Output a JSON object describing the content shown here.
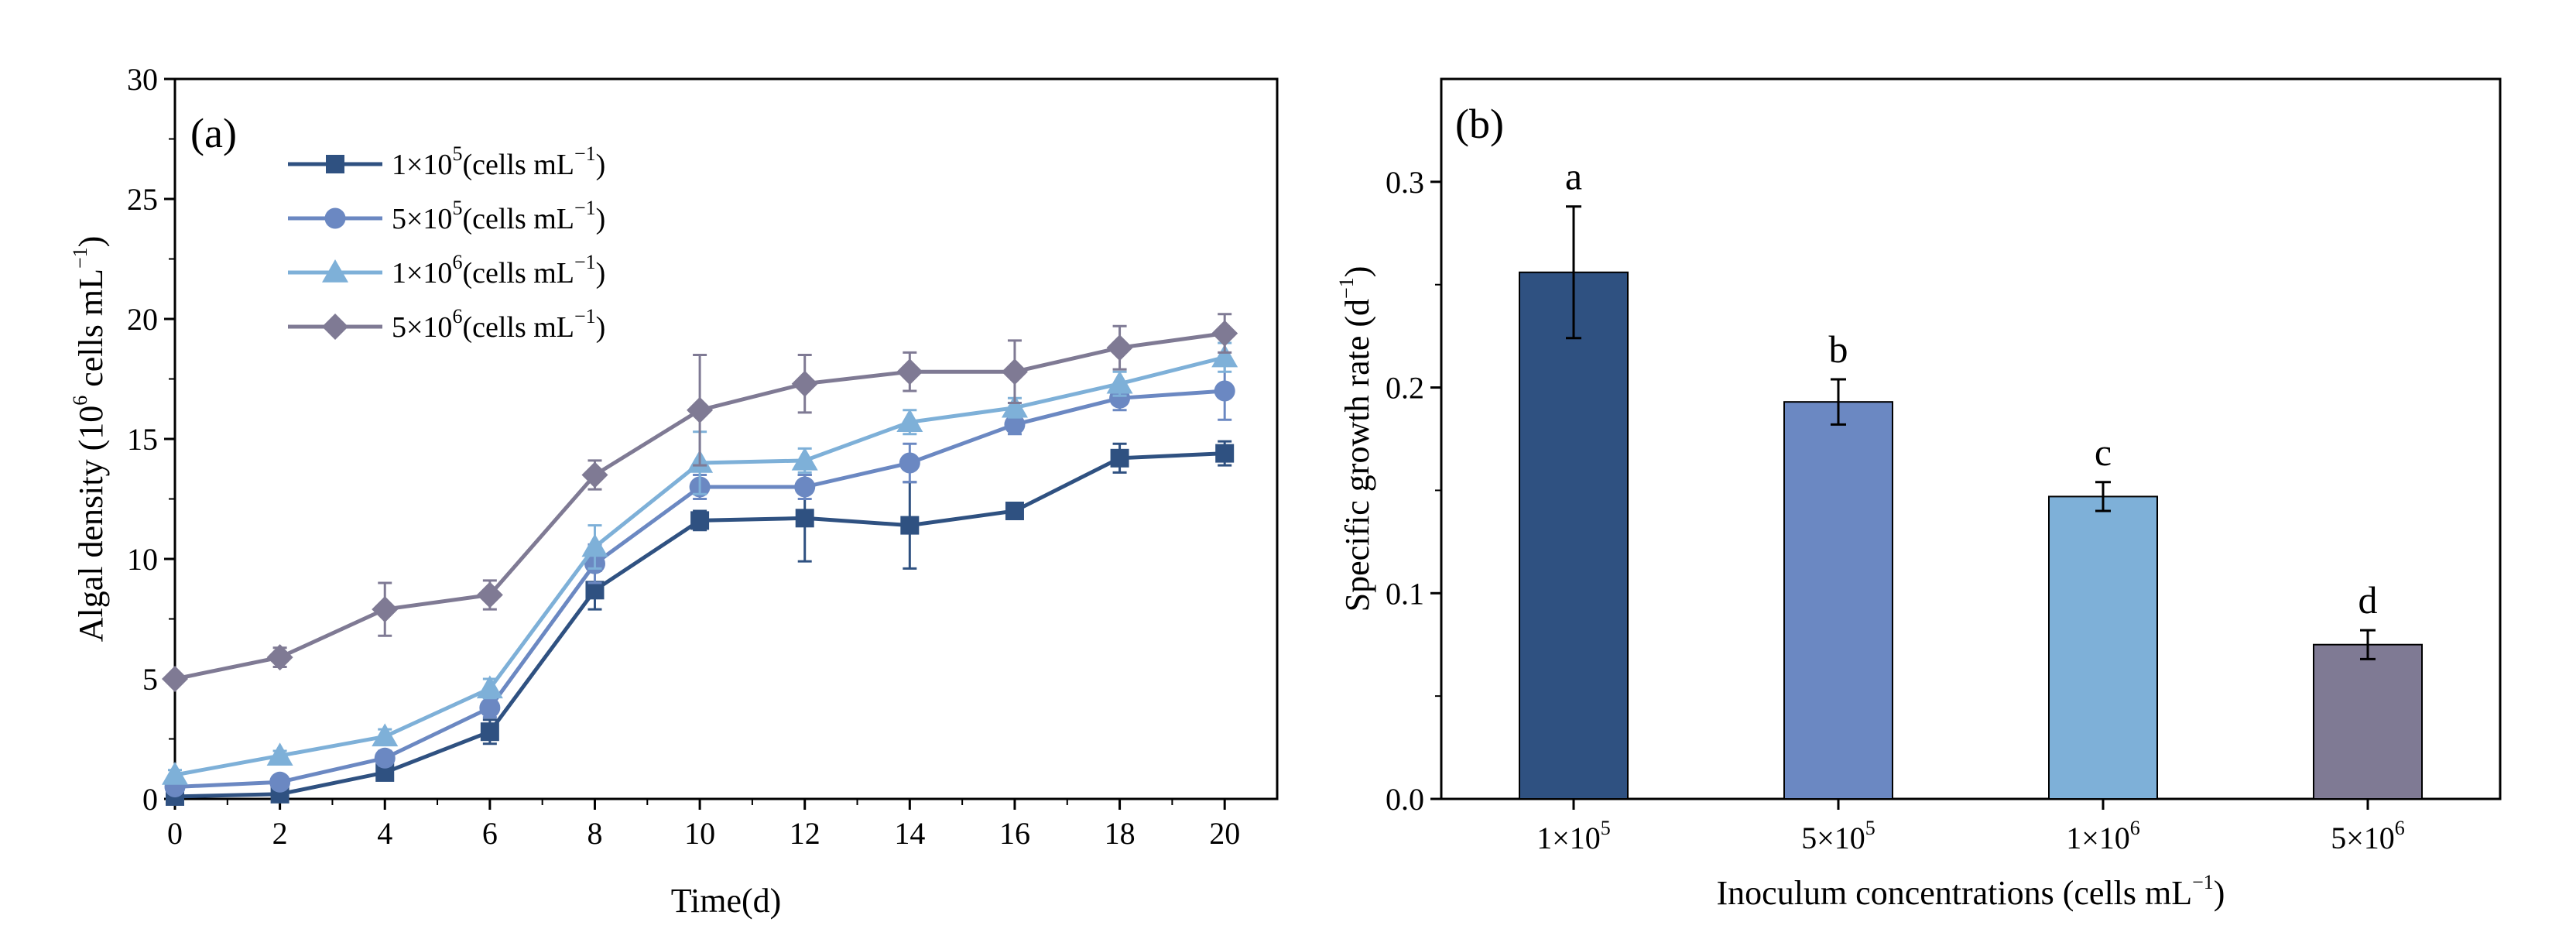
{
  "chart_data": [
    {
      "panel_label": "(a)",
      "type": "line",
      "xlabel": "Time(d)",
      "ylabel": "Algal density (10^6 cells mL^-1)",
      "ylabel_parts": {
        "pre": "Algal density (10",
        "exp1": "6",
        "mid": " cells mL",
        "exp2": "−1",
        "post": ")"
      },
      "x": [
        0,
        2,
        4,
        6,
        8,
        10,
        12,
        14,
        16,
        18,
        20
      ],
      "xlim": [
        0,
        21
      ],
      "ylim": [
        0,
        30
      ],
      "x_ticks": [
        "0",
        "2",
        "4",
        "6",
        "8",
        "10",
        "12",
        "14",
        "16",
        "18",
        "20"
      ],
      "y_ticks": [
        "0",
        "5",
        "10",
        "15",
        "20",
        "25",
        "30"
      ],
      "legend_position": "top-left",
      "series": [
        {
          "name": "1×10^5(cells mL^-1)",
          "label_parts": {
            "base": "1×10",
            "exp": "5",
            "unit": "(cells mL",
            "unit_exp": "−1",
            "close": ")"
          },
          "color": "#2f5181",
          "marker": "square",
          "values": [
            0.1,
            0.2,
            1.1,
            2.8,
            8.7,
            11.6,
            11.7,
            11.4,
            12.0,
            14.2,
            14.4
          ],
          "errors": [
            0.1,
            0.1,
            0.3,
            0.5,
            0.8,
            0.4,
            1.8,
            1.8,
            0.3,
            0.6,
            0.5
          ]
        },
        {
          "name": "5×10^5(cells mL^-1)",
          "label_parts": {
            "base": "5×10",
            "exp": "5",
            "unit": "(cells mL",
            "unit_exp": "−1",
            "close": ")"
          },
          "color": "#6b88c2",
          "marker": "circle",
          "values": [
            0.5,
            0.7,
            1.7,
            3.8,
            9.8,
            13.0,
            13.0,
            14.0,
            15.6,
            16.7,
            17.0
          ],
          "errors": [
            0.2,
            0.2,
            0.3,
            0.4,
            0.8,
            0.5,
            0.5,
            0.8,
            0.4,
            0.5,
            1.2
          ]
        },
        {
          "name": "1×10^6(cells mL^-1)",
          "label_parts": {
            "base": "1×10",
            "exp": "6",
            "unit": "(cells mL",
            "unit_exp": "−1",
            "close": ")"
          },
          "color": "#7eb0d8",
          "marker": "triangle",
          "values": [
            1.0,
            1.8,
            2.6,
            4.6,
            10.5,
            14.0,
            14.1,
            15.7,
            16.3,
            17.3,
            18.4
          ],
          "errors": [
            0.2,
            0.2,
            0.3,
            0.4,
            0.9,
            1.3,
            0.5,
            0.5,
            0.4,
            0.5,
            0.6
          ]
        },
        {
          "name": "5×10^6(cells mL^-1)",
          "label_parts": {
            "base": "5×10",
            "exp": "6",
            "unit": "(cells mL",
            "unit_exp": "−1",
            "close": ")"
          },
          "color": "#7f7a94",
          "marker": "diamond",
          "values": [
            5.0,
            5.9,
            7.9,
            8.5,
            13.5,
            16.2,
            17.3,
            17.8,
            17.8,
            18.8,
            19.4
          ],
          "errors": [
            0.1,
            0.4,
            1.1,
            0.6,
            0.6,
            2.3,
            1.2,
            0.8,
            1.3,
            0.9,
            0.8
          ]
        }
      ]
    },
    {
      "panel_label": "(b)",
      "type": "bar",
      "xlabel": "Inoculum concentrations (cells mL^-1)",
      "xlabel_parts": {
        "pre": "Inoculum concentrations (cells mL",
        "exp": "−1",
        "post": ")"
      },
      "ylabel": "Specific growth rate (d^-1)",
      "ylabel_parts": {
        "pre": "Specific growth rate (d",
        "exp": "−1",
        "post": ")"
      },
      "ylim": [
        0,
        0.35
      ],
      "y_ticks": [
        "0.0",
        "0.1",
        "0.2",
        "0.3"
      ],
      "categories": [
        {
          "label": "1×10^5",
          "base": "1×10",
          "exp": "5"
        },
        {
          "label": "5×10^5",
          "base": "5×10",
          "exp": "5"
        },
        {
          "label": "1×10^6",
          "base": "1×10",
          "exp": "6"
        },
        {
          "label": "5×10^6",
          "base": "5×10",
          "exp": "6"
        }
      ],
      "values": [
        0.256,
        0.193,
        0.147,
        0.075
      ],
      "errors": [
        0.032,
        0.011,
        0.007,
        0.007
      ],
      "significance": [
        "a",
        "b",
        "c",
        "d"
      ],
      "colors": [
        "#2f5181",
        "#6b88c2",
        "#7eb0d8",
        "#7f7a94"
      ]
    }
  ]
}
